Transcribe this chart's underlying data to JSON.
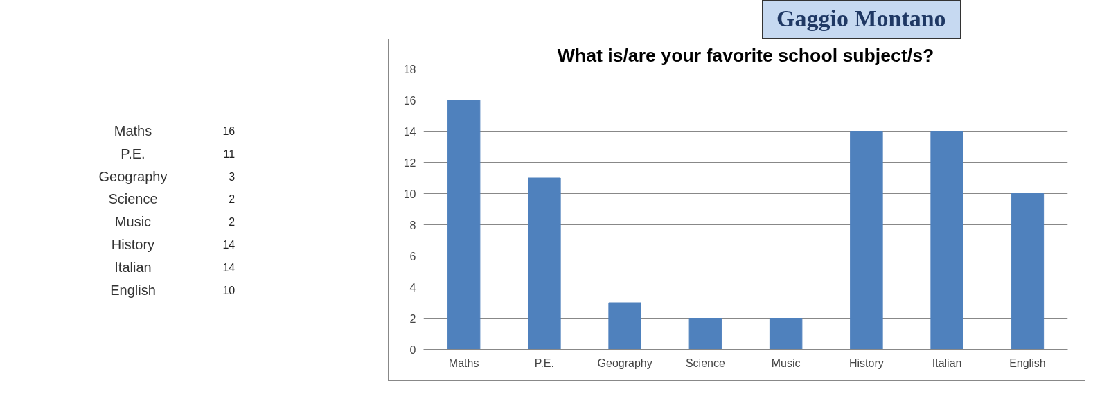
{
  "chart_data": [
    {
      "type": "other",
      "categories": [
        "Maths",
        "P.E.",
        "Geography",
        "Science",
        "Music",
        "History",
        "Italian",
        "English"
      ],
      "values": [
        16,
        11,
        3,
        2,
        2,
        14,
        14,
        10
      ],
      "data_labels": true
    },
    {
      "type": "bar",
      "title": "What is/are your favorite school subject/s?",
      "annotations": [
        "Gaggio Montano"
      ],
      "categories": [
        "Maths",
        "P.E.",
        "Geography",
        "Science",
        "Music",
        "History",
        "Italian",
        "English"
      ],
      "values": [
        16,
        11,
        3,
        2,
        2,
        14,
        14,
        10
      ],
      "color": "#4f81bd",
      "ylim": [
        0,
        18
      ],
      "yticks": [
        0,
        2,
        4,
        6,
        8,
        10,
        12,
        14,
        16,
        18
      ],
      "grid": "y"
    }
  ]
}
